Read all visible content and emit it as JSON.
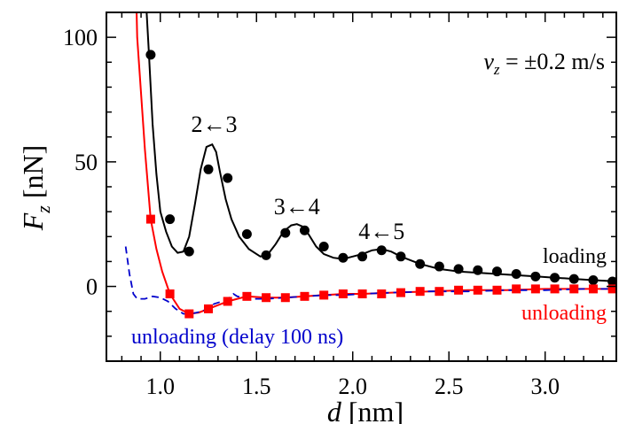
{
  "chart_data": {
    "type": "line",
    "xlabel": {
      "italic": "d",
      "rest": " [nm]"
    },
    "ylabel": {
      "italic": "F",
      "sub": "z",
      "rest": " [nN]"
    },
    "xlim": [
      0.72,
      3.37
    ],
    "ylim": [
      -30,
      110
    ],
    "xticks": [
      1.0,
      1.5,
      2.0,
      2.5,
      3.0
    ],
    "xtick_labels": [
      "1.0",
      "1.5",
      "2.0",
      "2.5",
      "3.0"
    ],
    "yticks": [
      0,
      50,
      100
    ],
    "ytick_labels": [
      "0",
      "50",
      "100"
    ],
    "grid": false,
    "velocity_label": {
      "symbol": "v",
      "sub": "z",
      "text": " = ±0.2 m/s"
    },
    "annotations": [
      {
        "text": "2←3",
        "x": 1.28,
        "y": 62
      },
      {
        "text": "3←4",
        "x": 1.71,
        "y": 29
      },
      {
        "text": "4←5",
        "x": 2.15,
        "y": 19
      }
    ],
    "series": [
      {
        "name": "loading",
        "color": "#000000",
        "marker": "circle",
        "line_x": [
          0.9,
          0.94,
          0.96,
          0.98,
          1.0,
          1.03,
          1.06,
          1.09,
          1.12,
          1.15,
          1.18,
          1.21,
          1.24,
          1.27,
          1.29,
          1.31,
          1.34,
          1.37,
          1.41,
          1.46,
          1.52,
          1.56,
          1.6,
          1.64,
          1.68,
          1.71,
          1.74,
          1.77,
          1.81,
          1.85,
          1.9,
          1.95,
          2.0,
          2.05,
          2.1,
          2.15,
          2.2,
          2.25,
          2.35,
          2.45,
          2.55,
          2.65,
          2.75,
          2.85,
          2.95,
          3.05,
          3.15,
          3.25,
          3.37
        ],
        "line_y": [
          150,
          95,
          65,
          45,
          30,
          22,
          16,
          13.5,
          14,
          20,
          33,
          47,
          56,
          57,
          54,
          46,
          35,
          27,
          20,
          15,
          12,
          13,
          17,
          22,
          24.5,
          25,
          24,
          21,
          16,
          13,
          11.5,
          11,
          12,
          13,
          14.5,
          15,
          14,
          12,
          9,
          7,
          6,
          5.5,
          5,
          4.5,
          4,
          3.5,
          3,
          2.5,
          2
        ],
        "marker_x": [
          0.95,
          1.05,
          1.15,
          1.25,
          1.35,
          1.45,
          1.55,
          1.65,
          1.75,
          1.85,
          1.95,
          2.05,
          2.15,
          2.25,
          2.35,
          2.45,
          2.55,
          2.65,
          2.75,
          2.85,
          2.95,
          3.05,
          3.15,
          3.25,
          3.35
        ],
        "marker_y": [
          93,
          27,
          14,
          47,
          43.5,
          21,
          12.5,
          21.5,
          22.5,
          16,
          11.5,
          12,
          14.5,
          12,
          9,
          8,
          7,
          6.5,
          6,
          5,
          4,
          3.5,
          3,
          2.5,
          2
        ],
        "label_color": "#000000"
      },
      {
        "name": "unloading",
        "color": "#ff0000",
        "marker": "square",
        "line_x": [
          0.85,
          0.88,
          0.92,
          0.95,
          0.98,
          1.01,
          1.05,
          1.1,
          1.15,
          1.2,
          1.25,
          1.35,
          1.45,
          1.55,
          1.65,
          1.75,
          1.85,
          1.95,
          2.05,
          2.2,
          2.4,
          2.6,
          2.8,
          3.0,
          3.2,
          3.37
        ],
        "line_y": [
          200,
          100,
          55,
          27,
          15,
          6,
          -3,
          -9,
          -11,
          -10.5,
          -9,
          -6,
          -4,
          -4.5,
          -4.5,
          -4,
          -3.5,
          -3,
          -3,
          -2.5,
          -2,
          -1.5,
          -1.5,
          -1,
          -1,
          -1
        ],
        "marker_x": [
          0.95,
          1.05,
          1.15,
          1.25,
          1.35,
          1.45,
          1.55,
          1.65,
          1.75,
          1.85,
          1.95,
          2.05,
          2.15,
          2.25,
          2.35,
          2.45,
          2.55,
          2.65,
          2.75,
          2.85,
          2.95,
          3.05,
          3.15,
          3.25,
          3.35
        ],
        "marker_y": [
          27,
          -3,
          -11,
          -9,
          -6,
          -4,
          -4.5,
          -4.5,
          -4,
          -3.5,
          -3,
          -3,
          -3,
          -2.5,
          -2,
          -2,
          -1.5,
          -1.5,
          -1.5,
          -1,
          -1,
          -1,
          -1,
          -1,
          -1
        ],
        "label_color": "#ff0000"
      },
      {
        "name": "unloading (delay 100 ns)",
        "color": "#0000cc",
        "dashed": true,
        "line_x": [
          0.82,
          0.84,
          0.86,
          0.88,
          0.92,
          0.96,
          1.0,
          1.04,
          1.08,
          1.12,
          1.16,
          1.22,
          1.28,
          1.32,
          1.36,
          1.38,
          1.4,
          1.45,
          1.55,
          1.65,
          1.75,
          1.85,
          1.95,
          2.05,
          2.2,
          2.4,
          2.6,
          2.8,
          3.0,
          3.2,
          3.37
        ],
        "line_y": [
          16,
          5,
          -3,
          -5,
          -5,
          -4,
          -4.5,
          -6,
          -9,
          -11,
          -11,
          -10,
          -7,
          -6,
          -4.5,
          -3,
          -4,
          -5,
          -5,
          -4.5,
          -4,
          -3.5,
          -3.5,
          -3,
          -2.5,
          -2,
          -2,
          -1.5,
          -1.5,
          -1,
          -1
        ],
        "label_color": "#0000cc"
      }
    ]
  }
}
